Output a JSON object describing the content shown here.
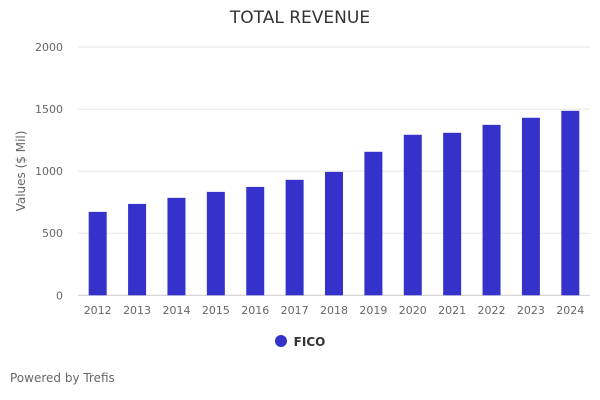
{
  "chart_data": {
    "type": "bar",
    "title": "TOTAL REVENUE",
    "xlabel": "",
    "ylabel": "Values ($ Mil)",
    "ylim": [
      0,
      2000
    ],
    "yticks": [
      0,
      500,
      1000,
      1500,
      2000
    ],
    "grid": true,
    "legend_position": "bottom",
    "categories": [
      "2012",
      "2013",
      "2014",
      "2015",
      "2016",
      "2017",
      "2018",
      "2019",
      "2020",
      "2021",
      "2022",
      "2023",
      "2024"
    ],
    "series": [
      {
        "name": "FICO",
        "color": "#3532cc",
        "values": [
          672,
          736,
          785,
          833,
          873,
          930,
          994,
          1156,
          1293,
          1309,
          1373,
          1430,
          1486
        ]
      }
    ]
  },
  "credit": "Powered by Trefis"
}
